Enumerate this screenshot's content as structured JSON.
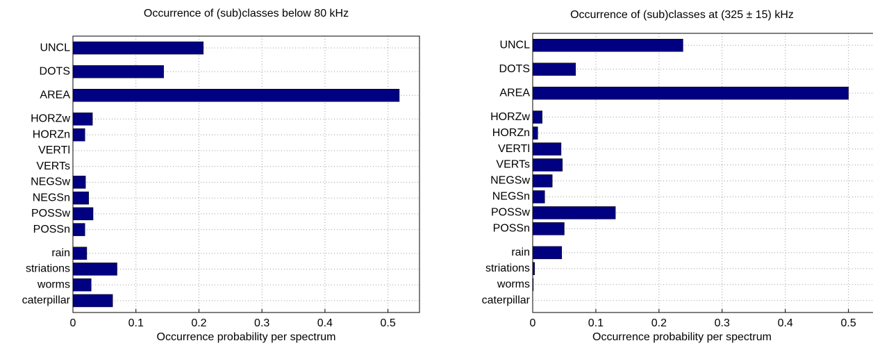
{
  "chart_data": [
    {
      "type": "barh",
      "title": "Occurrence of (sub)classes below 80 kHz",
      "xlabel": "Occurrence probability per spectrum",
      "categories": [
        "UNCL",
        "DOTS",
        "AREA",
        "HORZw",
        "HORZn",
        "VERTl",
        "VERTs",
        "NEGSw",
        "NEGSn",
        "POSSw",
        "POSSn",
        "rain",
        "striations",
        "worms",
        "caterpillar"
      ],
      "values": [
        0.207,
        0.144,
        0.518,
        0.031,
        0.019,
        0,
        0,
        0.02,
        0.025,
        0.032,
        0.019,
        0.022,
        0.07,
        0.029,
        0.063
      ],
      "color": "#000080",
      "xlim": [
        0,
        0.55
      ],
      "xticks": [
        0,
        0.1,
        0.2,
        0.3,
        0.4,
        0.5
      ],
      "grid": true
    },
    {
      "type": "barh",
      "title": "Occurrence of (sub)classes at (325 ± 15) kHz",
      "xlabel": "Occurrence probability per spectrum",
      "categories": [
        "UNCL",
        "DOTS",
        "AREA",
        "HORZw",
        "HORZn",
        "VERTl",
        "VERTs",
        "NEGSw",
        "NEGSn",
        "POSSw",
        "POSSn",
        "rain",
        "striations",
        "worms",
        "caterpillar"
      ],
      "values": [
        0.238,
        0.068,
        0.5,
        0.015,
        0.008,
        0.045,
        0.047,
        0.031,
        0.019,
        0.131,
        0.05,
        0.046,
        0.003,
        0.001,
        0
      ],
      "color": "#000080",
      "xlim": [
        0,
        0.54
      ],
      "xticks": [
        0,
        0.1,
        0.2,
        0.3,
        0.4,
        0.5
      ],
      "grid": true
    }
  ]
}
